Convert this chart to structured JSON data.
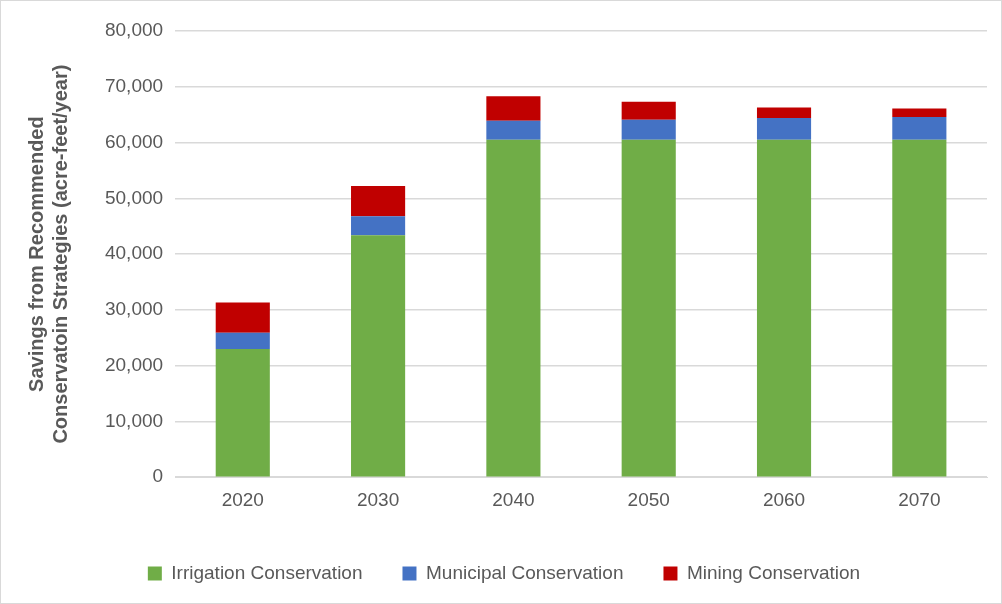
{
  "chart_data": {
    "type": "bar",
    "stacked": true,
    "ylabel": "Savings from Recommended\nConservatoin Strategies (acre-feet/year)",
    "categories": [
      "2020",
      "2030",
      "2040",
      "2050",
      "2060",
      "2070"
    ],
    "series": [
      {
        "name": "Irrigation Conservation",
        "color": "#70ad47",
        "values": [
          23000,
          43400,
          60500,
          60500,
          60500,
          60500
        ]
      },
      {
        "name": "Municipal Conservation",
        "color": "#4472c4",
        "values": [
          2900,
          3400,
          3400,
          3600,
          3900,
          4100
        ]
      },
      {
        "name": "Mining Conservation",
        "color": "#c00000",
        "values": [
          5400,
          5400,
          4400,
          3200,
          1900,
          1500
        ]
      }
    ],
    "ylim": [
      0,
      80000
    ],
    "yticks": [
      {
        "value": 0,
        "label": "0"
      },
      {
        "value": 10000,
        "label": "10,000"
      },
      {
        "value": 20000,
        "label": "20,000"
      },
      {
        "value": 30000,
        "label": "30,000"
      },
      {
        "value": 40000,
        "label": "40,000"
      },
      {
        "value": 50000,
        "label": "50,000"
      },
      {
        "value": 60000,
        "label": "60,000"
      },
      {
        "value": 70000,
        "label": "70,000"
      },
      {
        "value": 80000,
        "label": "80,000"
      }
    ],
    "grid": "y",
    "legend": "bottom"
  }
}
